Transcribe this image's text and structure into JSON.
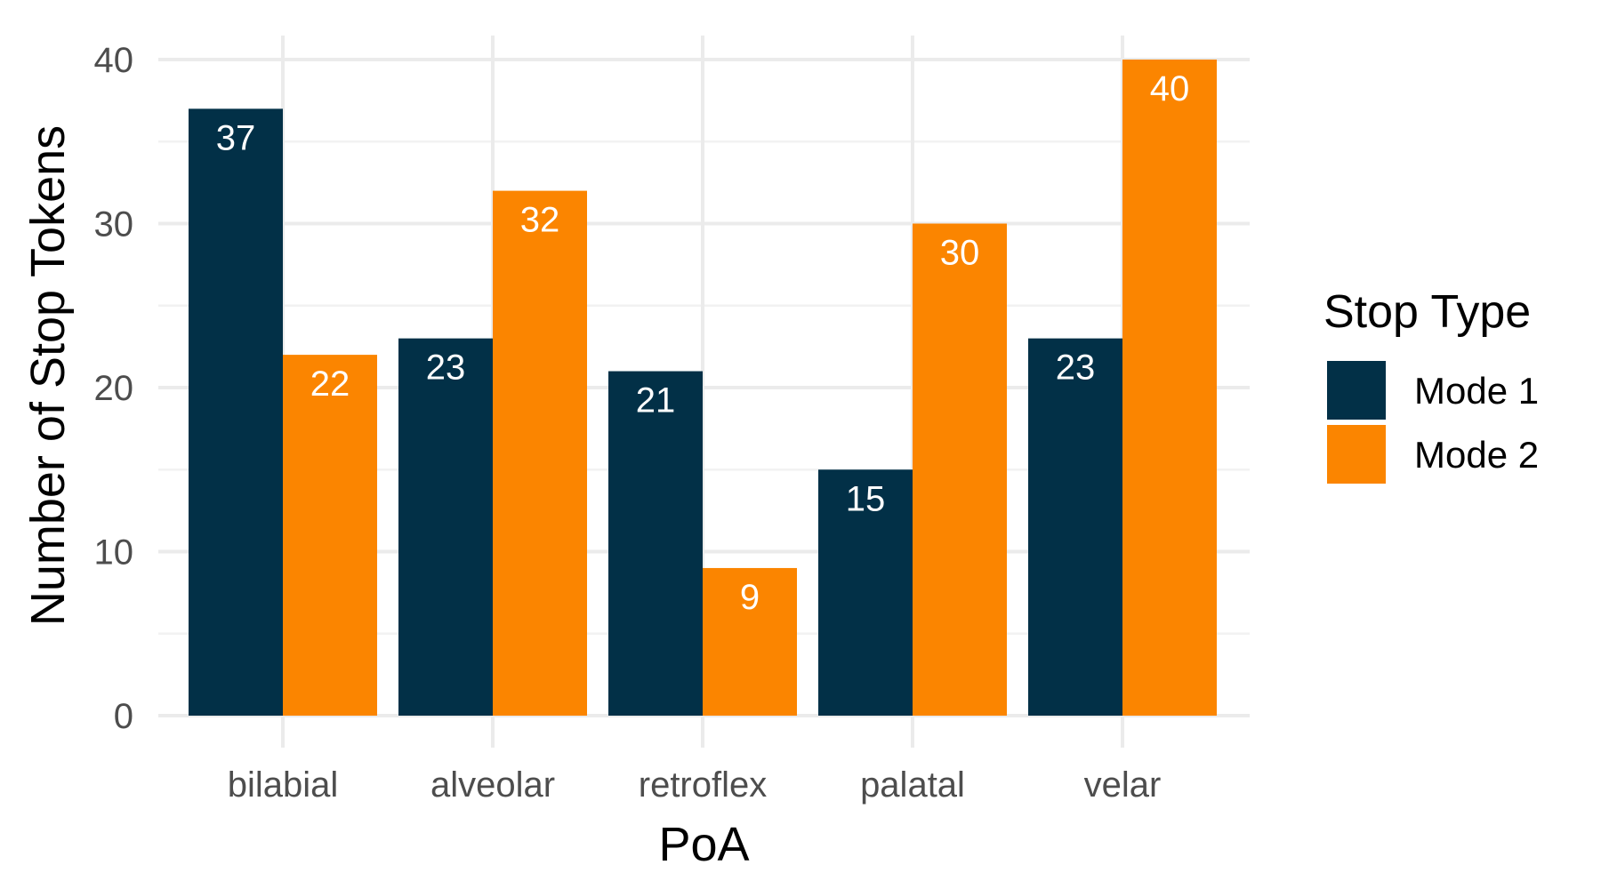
{
  "chart_data": {
    "type": "bar",
    "categories": [
      "bilabial",
      "alveolar",
      "retroflex",
      "palatal",
      "velar"
    ],
    "series": [
      {
        "name": "Mode 1",
        "values": [
          37,
          23,
          21,
          15,
          23
        ],
        "color": "#023047"
      },
      {
        "name": "Mode 2",
        "values": [
          22,
          32,
          9,
          30,
          40
        ],
        "color": "#fb8500"
      }
    ],
    "xlabel": "PoA",
    "ylabel": "Number of Stop Tokens",
    "ylim": [
      0,
      40
    ],
    "yticks": [
      0,
      10,
      20,
      30,
      40
    ],
    "grid": true,
    "legend": {
      "title": "Stop Type",
      "placement": "right"
    }
  }
}
